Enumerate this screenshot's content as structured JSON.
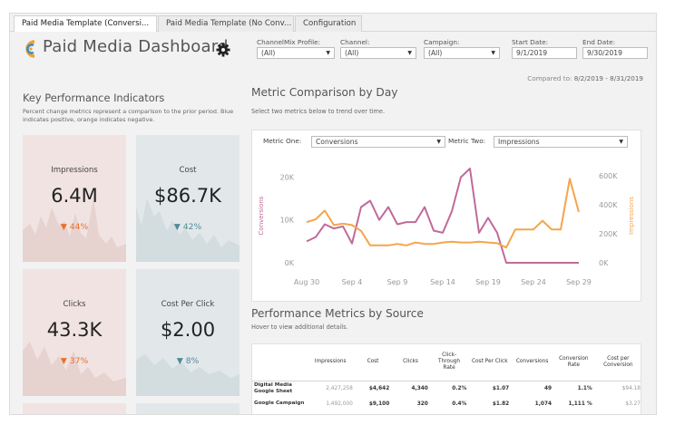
{
  "tabs": [
    {
      "label": "Paid Media Template (Conversi..."
    },
    {
      "label": "Paid Media Template (No Conv..."
    },
    {
      "label": "Configuration"
    }
  ],
  "header": {
    "title": "Paid Media Dashboard"
  },
  "filters": {
    "channelmix": {
      "label": "ChannelMix Profile:",
      "value": "(All)"
    },
    "channel": {
      "label": "Channel:",
      "value": "(All)"
    },
    "campaign": {
      "label": "Campaign:",
      "value": "(All)"
    },
    "start_date": {
      "label": "Start Date:",
      "value": "9/1/2019"
    },
    "end_date": {
      "label": "End Date:",
      "value": "9/30/2019"
    }
  },
  "compared": {
    "label": "Compared to:",
    "value": "8/2/2019 - 8/31/2019"
  },
  "kpi": {
    "title": "Key Performance Indicators",
    "subtitle": "Percent change metrics represent a comparison to the prior period. Blue indicates positive, orange indicates negative.",
    "cards": [
      {
        "label": "Impressions",
        "value": "6.4M",
        "delta": "▼ 44%",
        "tone": "orange"
      },
      {
        "label": "Cost",
        "value": "$86.7K",
        "delta": "▼ 42%",
        "tone": "blue"
      },
      {
        "label": "Clicks",
        "value": "43.3K",
        "delta": "▼ 37%",
        "tone": "orange"
      },
      {
        "label": "Cost Per Click",
        "value": "$2.00",
        "delta": "▼ 8%",
        "tone": "blue"
      }
    ]
  },
  "metric_comparison": {
    "title": "Metric Comparison by Day",
    "subtitle": "Select two metrics below to trend over time.",
    "metric_one": {
      "label": "Metric One:",
      "value": "Conversions"
    },
    "metric_two": {
      "label": "Metric Two:",
      "value": "Impressions"
    }
  },
  "colors": {
    "conversions": "#c16a9a",
    "impressions": "#f5a54a",
    "orange_delta": "#e8702a",
    "blue_delta": "#4e8c99"
  },
  "chart_data": {
    "type": "line",
    "x": [
      "Aug 30",
      "Aug 31",
      "Sep 1",
      "Sep 2",
      "Sep 3",
      "Sep 4",
      "Sep 5",
      "Sep 6",
      "Sep 7",
      "Sep 8",
      "Sep 9",
      "Sep 10",
      "Sep 11",
      "Sep 12",
      "Sep 13",
      "Sep 14",
      "Sep 15",
      "Sep 16",
      "Sep 17",
      "Sep 18",
      "Sep 19",
      "Sep 20",
      "Sep 21",
      "Sep 22",
      "Sep 23",
      "Sep 24",
      "Sep 25",
      "Sep 26",
      "Sep 27",
      "Sep 28",
      "Sep 29"
    ],
    "x_ticks": [
      "Aug 30",
      "Sep 4",
      "Sep 9",
      "Sep 14",
      "Sep 19",
      "Sep 24",
      "Sep 29"
    ],
    "series": [
      {
        "name": "Conversions",
        "axis": "left",
        "values": [
          5000,
          6000,
          9000,
          8000,
          8500,
          4500,
          13000,
          14500,
          10000,
          13000,
          9000,
          9500,
          9500,
          13000,
          7500,
          7000,
          12000,
          20000,
          22000,
          7000,
          10500,
          7000,
          0,
          0,
          0,
          0,
          0,
          0,
          0,
          0,
          0
        ]
      },
      {
        "name": "Impressions",
        "axis": "right",
        "values": [
          280000,
          300000,
          360000,
          260000,
          270000,
          260000,
          220000,
          120000,
          120000,
          120000,
          130000,
          120000,
          140000,
          130000,
          130000,
          140000,
          145000,
          140000,
          140000,
          145000,
          140000,
          135000,
          105000,
          230000,
          230000,
          230000,
          290000,
          230000,
          230000,
          580000,
          350000
        ]
      }
    ],
    "ylabel_left": "Conversions",
    "ylabel_right": "Impressions",
    "ylim_left": [
      0,
      22000
    ],
    "ylim_right": [
      0,
      650000
    ],
    "yticks_left": [
      "0K",
      "10K",
      "20K"
    ],
    "yticks_right": [
      "0K",
      "200K",
      "400K",
      "600K"
    ],
    "grid": false
  },
  "performance": {
    "title": "Performance Metrics by Source",
    "subtitle": "Hover to view additional details.",
    "columns": [
      "",
      "Impressions",
      "Cost",
      "Clicks",
      "Click-Through Rate",
      "Cost Per Click",
      "Conversions",
      "Conversion Rate",
      "Cost per Conversion"
    ],
    "rows": [
      {
        "source": "Digital Media Google Sheet",
        "cells": [
          "2,427,258",
          "$4,642",
          "4,340",
          "0.2%",
          "$1.07",
          "49",
          "1.1%",
          "$94.18"
        ]
      },
      {
        "source": "Google Campaign",
        "cells": [
          "1,492,000",
          "$9,100",
          "320",
          "0.4%",
          "$1.82",
          "1,074",
          "1,111 %",
          "$3.27"
        ]
      }
    ]
  }
}
